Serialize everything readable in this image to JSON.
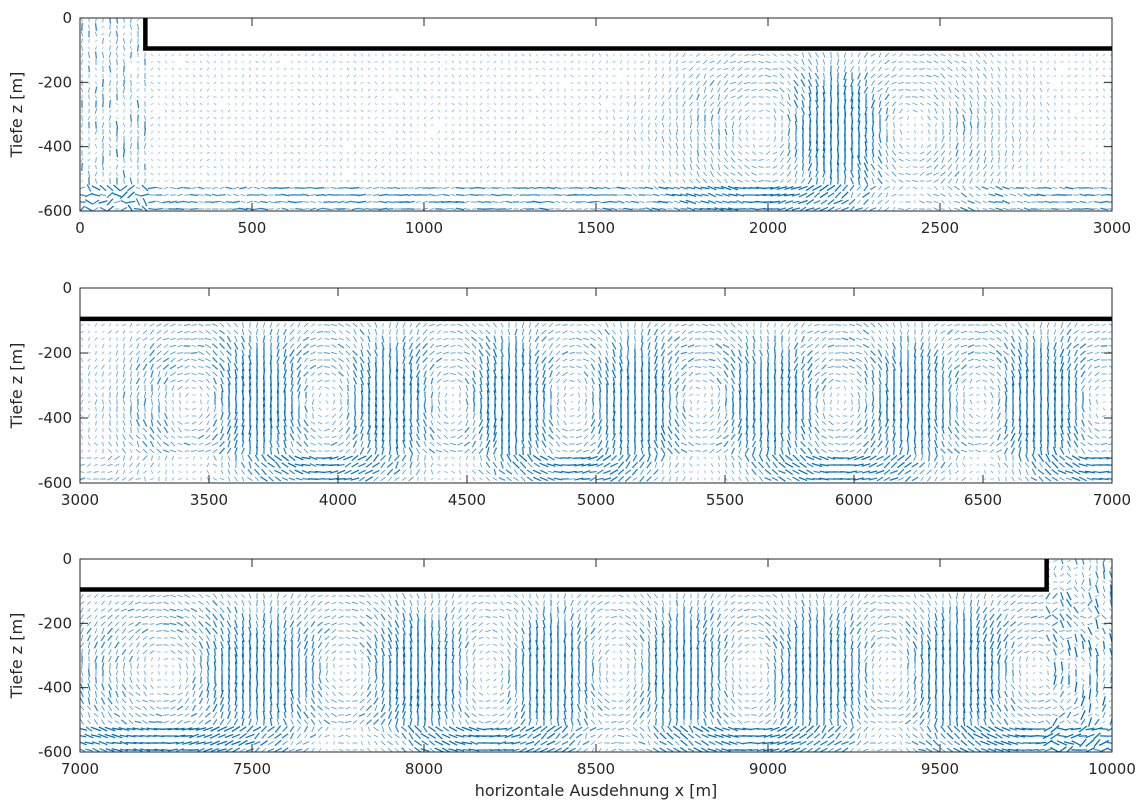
{
  "chart_data": [
    {
      "type": "quiver",
      "xlim": [
        0,
        3000
      ],
      "ylim": [
        -600,
        0
      ],
      "xticks": [
        0,
        500,
        1000,
        1500,
        2000,
        2500,
        3000
      ],
      "yticks": [
        0,
        -200,
        -400,
        -600
      ],
      "xtick_labels": [
        "0",
        "500",
        "1000",
        "1500",
        "2000",
        "2500",
        "3000"
      ],
      "ytick_labels": [
        "0",
        "-200",
        "-400",
        "-600"
      ],
      "ylabel": "Tiefe z [m]",
      "xlabel": "",
      "grid": false,
      "boundary": {
        "x": [
          190,
          190,
          3000
        ],
        "y": [
          0,
          -95,
          -95
        ]
      },
      "vortices": [
        {
          "x": 2050,
          "z": -350,
          "sign": 1
        },
        {
          "x": 2350,
          "z": -350,
          "sign": -1
        }
      ]
    },
    {
      "type": "quiver",
      "xlim": [
        3000,
        7000
      ],
      "ylim": [
        -600,
        0
      ],
      "xticks": [
        3000,
        3500,
        4000,
        4500,
        5000,
        5500,
        6000,
        6500,
        7000
      ],
      "yticks": [
        0,
        -200,
        -400,
        -600
      ],
      "xtick_labels": [
        "3000",
        "3500",
        "4000",
        "4500",
        "5000",
        "5500",
        "6000",
        "6500",
        "7000"
      ],
      "ytick_labels": [
        "0",
        "-200",
        "-400",
        "-600"
      ],
      "ylabel": "Tiefe z [m]",
      "xlabel": "",
      "grid": false,
      "boundary": {
        "x": [
          3000,
          7000
        ],
        "y": [
          -95,
          -95
        ]
      },
      "vortices": [
        {
          "x": 3450,
          "z": -350,
          "sign": 1
        },
        {
          "x": 3950,
          "z": -350,
          "sign": -1
        },
        {
          "x": 4450,
          "z": -350,
          "sign": 1
        },
        {
          "x": 4900,
          "z": -350,
          "sign": -1
        },
        {
          "x": 5400,
          "z": -350,
          "sign": 1
        },
        {
          "x": 5950,
          "z": -350,
          "sign": -1
        },
        {
          "x": 6500,
          "z": -350,
          "sign": 1
        },
        {
          "x": 6950,
          "z": -350,
          "sign": -1
        }
      ]
    },
    {
      "type": "quiver",
      "xlim": [
        7000,
        10000
      ],
      "ylim": [
        -600,
        0
      ],
      "xticks": [
        7000,
        7500,
        8000,
        8500,
        9000,
        9500,
        10000
      ],
      "yticks": [
        0,
        -200,
        -400,
        -600
      ],
      "xtick_labels": [
        "7000",
        "7500",
        "8000",
        "8500",
        "9000",
        "9500",
        "10000"
      ],
      "ytick_labels": [
        "0",
        "-200",
        "-400",
        "-600"
      ],
      "ylabel": "Tiefe z [m]",
      "xlabel": "horizontale Ausdehnung x [m]",
      "grid": false,
      "boundary": {
        "x": [
          7000,
          9810,
          9810
        ],
        "y": [
          -95,
          -95,
          0
        ]
      },
      "vortices": [
        {
          "x": 7250,
          "z": -350,
          "sign": 1
        },
        {
          "x": 7800,
          "z": -350,
          "sign": -1
        },
        {
          "x": 8200,
          "z": -350,
          "sign": 1
        },
        {
          "x": 8550,
          "z": -350,
          "sign": -1
        },
        {
          "x": 8950,
          "z": -350,
          "sign": 1
        },
        {
          "x": 9350,
          "z": -350,
          "sign": -1
        },
        {
          "x": 9750,
          "z": -350,
          "sign": 1
        }
      ]
    }
  ],
  "colors": {
    "arrows": "#0072BD",
    "boundary": "#000000",
    "axes": "#262626"
  }
}
